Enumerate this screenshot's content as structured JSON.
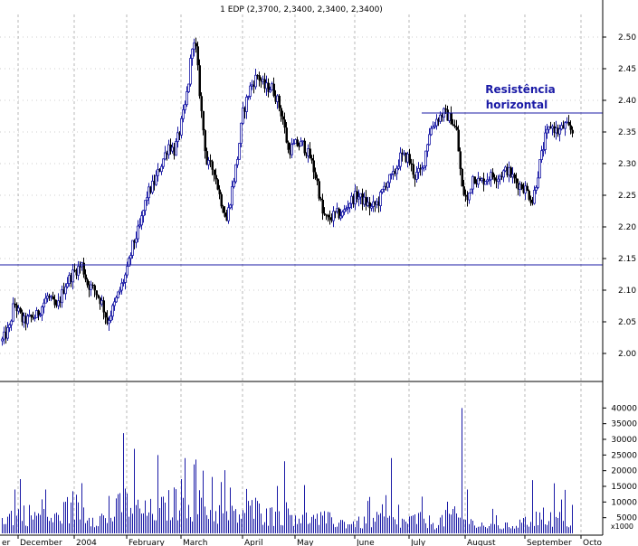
{
  "chart_data": {
    "type": "candlestick",
    "title": "1 EDP (2,3700, 2,3400, 2,3400, 2,3400)",
    "annotation": {
      "line1": "Resistência",
      "line2": "horizontal",
      "color": "#1a1aa6"
    },
    "price_axis": {
      "ylim": [
        1.97,
        2.53
      ],
      "ticks": [
        "2.00",
        "2.05",
        "2.10",
        "2.15",
        "2.20",
        "2.25",
        "2.30",
        "2.35",
        "2.40",
        "2.45",
        "2.50"
      ]
    },
    "volume_axis": {
      "ylim": [
        0,
        45000
      ],
      "ticks": [
        "5000",
        "10000",
        "15000",
        "20000",
        "25000",
        "30000",
        "35000",
        "40000"
      ],
      "unit_label": "x1000"
    },
    "x_axis": {
      "labels": [
        {
          "text": "er",
          "x": 0
        },
        {
          "text": "December",
          "x": 20
        },
        {
          "text": "2004",
          "x": 82
        },
        {
          "text": "February",
          "x": 140
        },
        {
          "text": "March",
          "x": 200
        },
        {
          "text": "April",
          "x": 268
        },
        {
          "text": "May",
          "x": 326
        },
        {
          "text": "June",
          "x": 392
        },
        {
          "text": "July",
          "x": 452
        },
        {
          "text": "August",
          "x": 514
        },
        {
          "text": "September",
          "x": 580
        },
        {
          "text": "Octo",
          "x": 642
        }
      ],
      "x_range": [
        0,
        666
      ]
    },
    "support_line": {
      "value": 2.14
    },
    "resistance_line": {
      "value": 2.38,
      "x_start": 466,
      "x_end": 666
    },
    "price_keypoints": [
      [
        2,
        2.02
      ],
      [
        10,
        2.04
      ],
      [
        15,
        2.08
      ],
      [
        25,
        2.05
      ],
      [
        40,
        2.06
      ],
      [
        52,
        2.09
      ],
      [
        62,
        2.07
      ],
      [
        72,
        2.11
      ],
      [
        82,
        2.13
      ],
      [
        90,
        2.14
      ],
      [
        96,
        2.11
      ],
      [
        104,
        2.1
      ],
      [
        112,
        2.08
      ],
      [
        118,
        2.05
      ],
      [
        124,
        2.07
      ],
      [
        132,
        2.1
      ],
      [
        140,
        2.13
      ],
      [
        146,
        2.17
      ],
      [
        154,
        2.2
      ],
      [
        162,
        2.25
      ],
      [
        170,
        2.27
      ],
      [
        178,
        2.3
      ],
      [
        186,
        2.33
      ],
      [
        192,
        2.32
      ],
      [
        198,
        2.35
      ],
      [
        204,
        2.39
      ],
      [
        208,
        2.43
      ],
      [
        212,
        2.49
      ],
      [
        216,
        2.48
      ],
      [
        222,
        2.38
      ],
      [
        228,
        2.3
      ],
      [
        236,
        2.29
      ],
      [
        242,
        2.25
      ],
      [
        250,
        2.21
      ],
      [
        256,
        2.26
      ],
      [
        262,
        2.31
      ],
      [
        268,
        2.38
      ],
      [
        276,
        2.42
      ],
      [
        284,
        2.44
      ],
      [
        292,
        2.42
      ],
      [
        300,
        2.42
      ],
      [
        306,
        2.4
      ],
      [
        312,
        2.37
      ],
      [
        318,
        2.32
      ],
      [
        326,
        2.33
      ],
      [
        334,
        2.33
      ],
      [
        342,
        2.31
      ],
      [
        350,
        2.27
      ],
      [
        356,
        2.22
      ],
      [
        362,
        2.21
      ],
      [
        370,
        2.22
      ],
      [
        378,
        2.22
      ],
      [
        386,
        2.24
      ],
      [
        394,
        2.25
      ],
      [
        402,
        2.24
      ],
      [
        410,
        2.23
      ],
      [
        418,
        2.24
      ],
      [
        426,
        2.27
      ],
      [
        434,
        2.28
      ],
      [
        442,
        2.31
      ],
      [
        450,
        2.31
      ],
      [
        458,
        2.28
      ],
      [
        466,
        2.29
      ],
      [
        474,
        2.35
      ],
      [
        482,
        2.37
      ],
      [
        490,
        2.38
      ],
      [
        498,
        2.37
      ],
      [
        504,
        2.35
      ],
      [
        510,
        2.26
      ],
      [
        516,
        2.24
      ],
      [
        522,
        2.28
      ],
      [
        530,
        2.27
      ],
      [
        540,
        2.28
      ],
      [
        550,
        2.28
      ],
      [
        560,
        2.29
      ],
      [
        570,
        2.27
      ],
      [
        580,
        2.26
      ],
      [
        588,
        2.24
      ],
      [
        596,
        2.3
      ],
      [
        602,
        2.34
      ],
      [
        608,
        2.36
      ],
      [
        616,
        2.35
      ],
      [
        624,
        2.36
      ],
      [
        632,
        2.35
      ]
    ],
    "volume_keypoints": [
      [
        2,
        4000
      ],
      [
        20,
        6000
      ],
      [
        40,
        5000
      ],
      [
        60,
        4000
      ],
      [
        80,
        8000
      ],
      [
        100,
        5000
      ],
      [
        120,
        4000
      ],
      [
        136,
        9000
      ],
      [
        160,
        6000
      ],
      [
        180,
        7000
      ],
      [
        200,
        10000
      ],
      [
        220,
        8000
      ],
      [
        240,
        6000
      ],
      [
        260,
        5000
      ],
      [
        280,
        7000
      ],
      [
        300,
        5000
      ],
      [
        320,
        6000
      ],
      [
        340,
        4000
      ],
      [
        360,
        4000
      ],
      [
        380,
        3000
      ],
      [
        400,
        3000
      ],
      [
        420,
        4000
      ],
      [
        440,
        3000
      ],
      [
        460,
        4000
      ],
      [
        480,
        3000
      ],
      [
        500,
        5000
      ],
      [
        520,
        3000
      ],
      [
        540,
        2000
      ],
      [
        560,
        2000
      ],
      [
        580,
        3000
      ],
      [
        600,
        5000
      ],
      [
        620,
        4000
      ],
      [
        632,
        3000
      ]
    ],
    "volume_spikes": [
      [
        16,
        14000
      ],
      [
        50,
        14000
      ],
      [
        90,
        16000
      ],
      [
        136,
        32000
      ],
      [
        204,
        24000
      ],
      [
        214,
        22000
      ],
      [
        224,
        20000
      ],
      [
        234,
        18000
      ],
      [
        314,
        23000
      ],
      [
        432,
        24000
      ],
      [
        510,
        40000
      ],
      [
        516,
        14000
      ],
      [
        588,
        17000
      ]
    ],
    "colors": {
      "up": "#1a1aa6",
      "down": "#000000",
      "grid": "#9a9a9a",
      "line": "#1a1aa6",
      "volume": "#1a1aa6"
    },
    "grid": true
  }
}
